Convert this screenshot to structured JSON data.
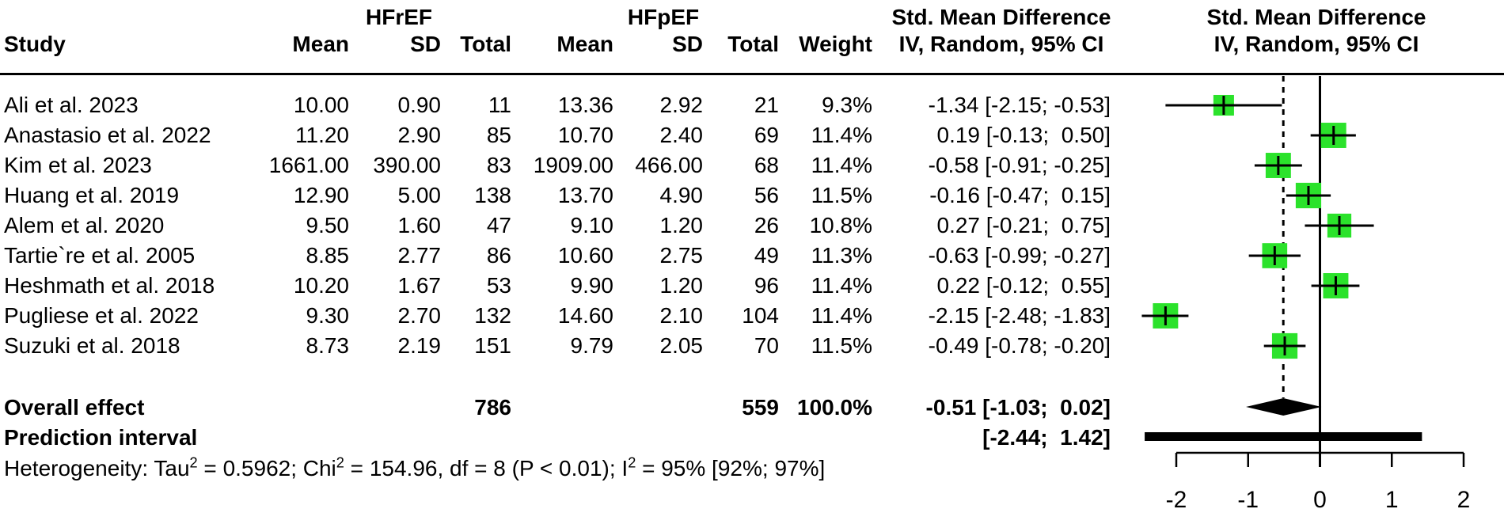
{
  "header": {
    "study": "Study",
    "group1": "HFrEF",
    "group2": "HFpEF",
    "mean1": "Mean",
    "sd1": "SD",
    "total1": "Total",
    "mean2": "Mean",
    "sd2": "SD",
    "total2": "Total",
    "weight": "Weight",
    "smd_text_title": "Std. Mean Difference",
    "smd_text_sub": "IV, Random, 95% CI",
    "smd_plot_title": "Std. Mean Difference",
    "smd_plot_sub": "IV, Random, 95% CI"
  },
  "studies": [
    {
      "name": "Ali et al. 2023",
      "mean1": "10.00",
      "sd1": "0.90",
      "total1": "11",
      "mean2": "13.36",
      "sd2": "2.92",
      "total2": "21",
      "weight": "9.3%",
      "smd": "-1.34 [-2.15; -0.53]"
    },
    {
      "name": "Anastasio et al. 2022",
      "mean1": "11.20",
      "sd1": "2.90",
      "total1": "85",
      "mean2": "10.70",
      "sd2": "2.40",
      "total2": "69",
      "weight": "11.4%",
      "smd": " 0.19 [-0.13;  0.50]"
    },
    {
      "name": "Kim et al. 2023",
      "mean1": "1661.00",
      "sd1": "390.00",
      "total1": "83",
      "mean2": "1909.00",
      "sd2": "466.00",
      "total2": "68",
      "weight": "11.4%",
      "smd": "-0.58 [-0.91; -0.25]"
    },
    {
      "name": "Huang et al. 2019",
      "mean1": "12.90",
      "sd1": "5.00",
      "total1": "138",
      "mean2": "13.70",
      "sd2": "4.90",
      "total2": "56",
      "weight": "11.5%",
      "smd": "-0.16 [-0.47;  0.15]"
    },
    {
      "name": "Alem et al. 2020",
      "mean1": "9.50",
      "sd1": "1.60",
      "total1": "47",
      "mean2": "9.10",
      "sd2": "1.20",
      "total2": "26",
      "weight": "10.8%",
      "smd": " 0.27 [-0.21;  0.75]"
    },
    {
      "name": "Tartie`re et al. 2005",
      "mean1": "8.85",
      "sd1": "2.77",
      "total1": "86",
      "mean2": "10.60",
      "sd2": "2.75",
      "total2": "49",
      "weight": "11.3%",
      "smd": "-0.63 [-0.99; -0.27]"
    },
    {
      "name": "Heshmath et al. 2018",
      "mean1": "10.20",
      "sd1": "1.67",
      "total1": "53",
      "mean2": "9.90",
      "sd2": "1.20",
      "total2": "96",
      "weight": "11.4%",
      "smd": " 0.22 [-0.12;  0.55]"
    },
    {
      "name": "Pugliese et al. 2022",
      "mean1": "9.30",
      "sd1": "2.70",
      "total1": "132",
      "mean2": "14.60",
      "sd2": "2.10",
      "total2": "104",
      "weight": "11.4%",
      "smd": "-2.15 [-2.48; -1.83]"
    },
    {
      "name": "Suzuki et al. 2018",
      "mean1": "8.73",
      "sd1": "2.19",
      "total1": "151",
      "mean2": "9.79",
      "sd2": "2.05",
      "total2": "70",
      "weight": "11.5%",
      "smd": "-0.49 [-0.78; -0.20]"
    }
  ],
  "summary": {
    "overall_label": "Overall effect",
    "overall_total1": "786",
    "overall_total2": "559",
    "overall_weight": "100.0%",
    "overall_smd": "-0.51 [-1.03;  0.02]",
    "prediction_label": "Prediction interval",
    "prediction_smd": "[-2.44;  1.42]"
  },
  "heterogeneity_parts": [
    {
      "text": "Heterogeneity: Tau"
    },
    {
      "sup": "2"
    },
    {
      "text": " = 0.5962; Chi"
    },
    {
      "sup": "2"
    },
    {
      "text": " = 154.96, df = 8 (P < 0.01); I"
    },
    {
      "sup": "2"
    },
    {
      "text": " = 95% [92%; 97%]"
    }
  ],
  "colors": {
    "square": "#2BE22B",
    "line": "#000000"
  },
  "chart_data": {
    "type": "forest",
    "title": "Std. Mean Difference",
    "model": "IV, Random, 95% CI",
    "groups": [
      "HFrEF",
      "HFpEF"
    ],
    "xticks": [
      -2,
      -1,
      0,
      1,
      2
    ],
    "xlim": [
      -2.6,
      2.1
    ],
    "zero_line": 0,
    "dashed_line_at": -0.51,
    "studies": [
      {
        "name": "Ali et al. 2023",
        "est": -1.34,
        "lo": -2.15,
        "hi": -0.53,
        "weight": 9.3
      },
      {
        "name": "Anastasio et al. 2022",
        "est": 0.19,
        "lo": -0.13,
        "hi": 0.5,
        "weight": 11.4
      },
      {
        "name": "Kim et al. 2023",
        "est": -0.58,
        "lo": -0.91,
        "hi": -0.25,
        "weight": 11.4
      },
      {
        "name": "Huang et al. 2019",
        "est": -0.16,
        "lo": -0.47,
        "hi": 0.15,
        "weight": 11.5
      },
      {
        "name": "Alem et al. 2020",
        "est": 0.27,
        "lo": -0.21,
        "hi": 0.75,
        "weight": 10.8
      },
      {
        "name": "Tartie`re et al. 2005",
        "est": -0.63,
        "lo": -0.99,
        "hi": -0.27,
        "weight": 11.3
      },
      {
        "name": "Heshmath et al. 2018",
        "est": 0.22,
        "lo": -0.12,
        "hi": 0.55,
        "weight": 11.4
      },
      {
        "name": "Pugliese et al. 2022",
        "est": -2.15,
        "lo": -2.48,
        "hi": -1.83,
        "weight": 11.4
      },
      {
        "name": "Suzuki et al. 2018",
        "est": -0.49,
        "lo": -0.78,
        "hi": -0.2,
        "weight": 11.5
      }
    ],
    "overall": {
      "label": "Overall effect",
      "est": -0.51,
      "lo": -1.03,
      "hi": 0.02,
      "n1": 786,
      "n2": 559,
      "weight": 100.0
    },
    "prediction_interval": {
      "label": "Prediction interval",
      "lo": -2.44,
      "hi": 1.42
    },
    "heterogeneity": "Tau2 = 0.5962; Chi2 = 154.96, df = 8 (P < 0.01); I2 = 95% [92%; 97%]"
  }
}
